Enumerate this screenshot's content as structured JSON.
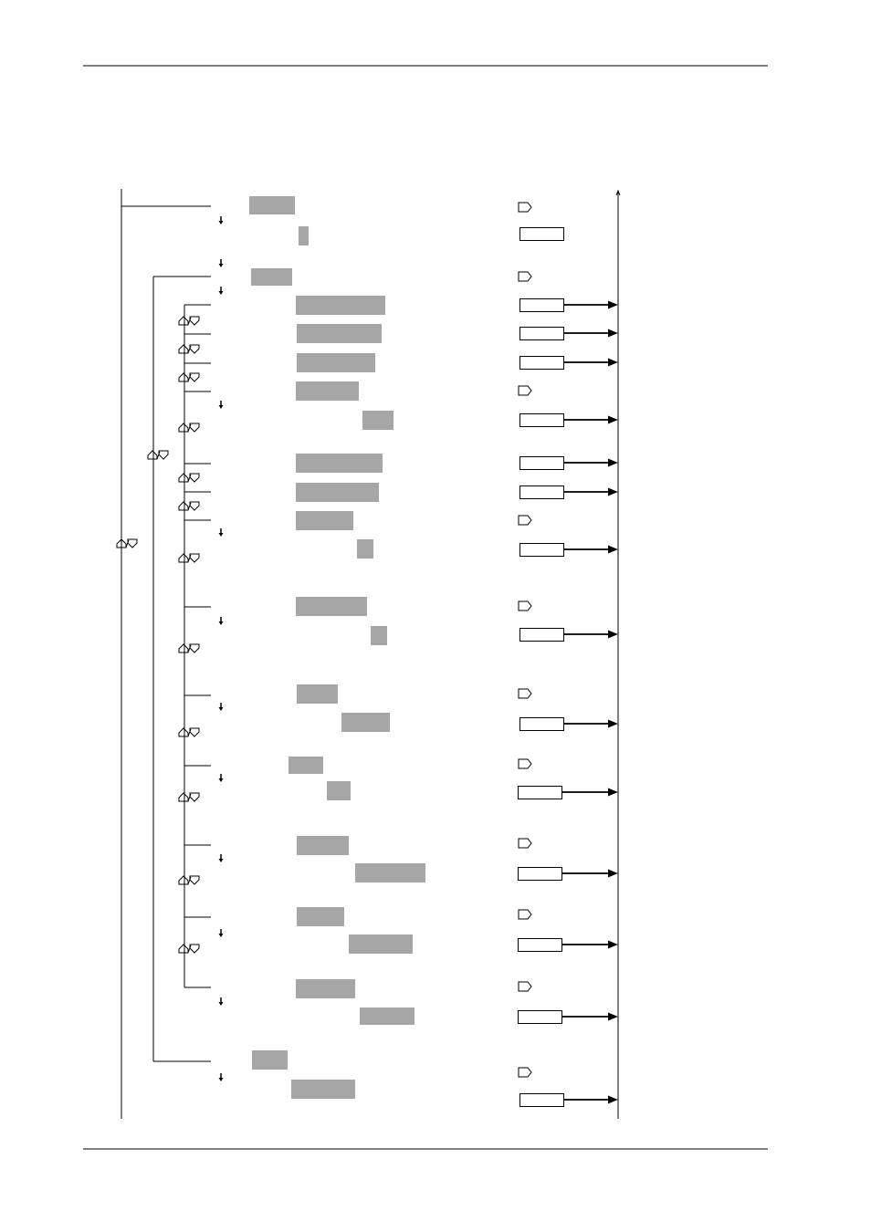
{
  "diagram": {
    "kind": "menu-flow-diagram",
    "colors": {
      "line": "#000000",
      "menu_box_fill": "#a6a6a6",
      "display_box_fill": "#ffffff",
      "page_background": "#ffffff"
    },
    "icons": {
      "updown_keys": "up-down-key-icon",
      "enter_key": "enter-key-icon",
      "next_arrow": "down-arrow-icon",
      "result_arrow": "right-arrow-icon"
    },
    "groups": [
      {
        "name": "group-1",
        "menu_rows": 1,
        "sub_items": 1
      },
      {
        "name": "group-2",
        "menu_rows": 14,
        "display_rows": 14
      },
      {
        "name": "group-3",
        "menu_rows": 2,
        "display_rows": 1
      }
    ]
  }
}
